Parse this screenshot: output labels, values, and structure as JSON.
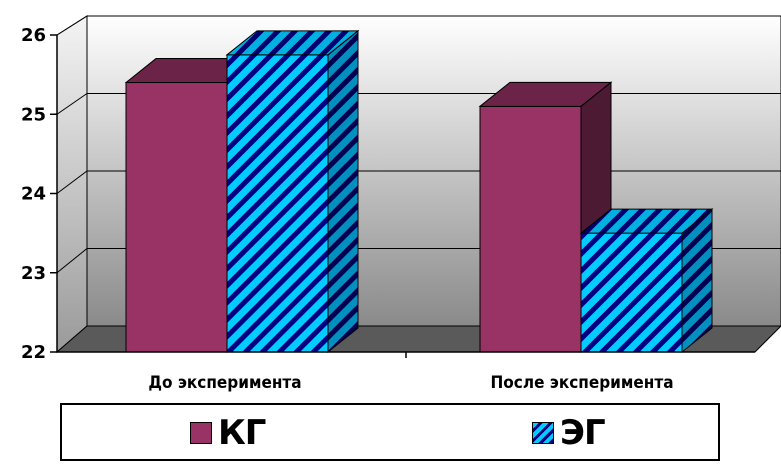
{
  "chart_data": {
    "type": "bar",
    "categories": [
      "До эксперимента",
      "После эксперимента"
    ],
    "series": [
      {
        "name": "КГ",
        "values": [
          25.4,
          25.1
        ],
        "color": "#993366"
      },
      {
        "name": "ЭГ",
        "values": [
          25.75,
          23.5
        ],
        "color": "#00ccff",
        "pattern": "diagonal-stripes"
      }
    ],
    "yticks": [
      22,
      23,
      24,
      25,
      26
    ],
    "ylim": [
      22,
      26
    ],
    "grid": true,
    "legend_position": "bottom",
    "style": "3d-clustered-column"
  }
}
